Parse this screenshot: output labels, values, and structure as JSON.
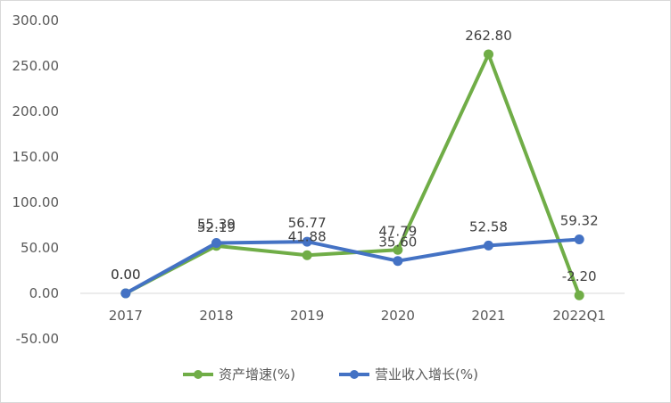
{
  "chart_data": {
    "type": "line",
    "title": "",
    "xlabel": "",
    "ylabel": "",
    "categories": [
      "2017",
      "2018",
      "2019",
      "2020",
      "2021",
      "2022Q1"
    ],
    "ylim": [
      -50,
      300
    ],
    "yticks": [
      "-50.00",
      "0.00",
      "50.00",
      "100.00",
      "150.00",
      "200.00",
      "250.00",
      "300.00"
    ],
    "grid": false,
    "legend_position": "bottom",
    "series": [
      {
        "name": "资产增速(%)",
        "color": "#70ad47",
        "values": [
          0.0,
          52.19,
          41.88,
          47.79,
          262.8,
          -2.2
        ],
        "labels": [
          "0.00",
          "52.19",
          "41.88",
          "47.79",
          "262.80",
          "-2.20"
        ]
      },
      {
        "name": "营业收入增长(%)",
        "color": "#4472c4",
        "values": [
          0.0,
          55.39,
          56.77,
          35.6,
          52.58,
          59.32
        ],
        "labels": [
          "0.00",
          "55.39",
          "56.77",
          "35.60",
          "52.58",
          "59.32"
        ]
      }
    ]
  }
}
